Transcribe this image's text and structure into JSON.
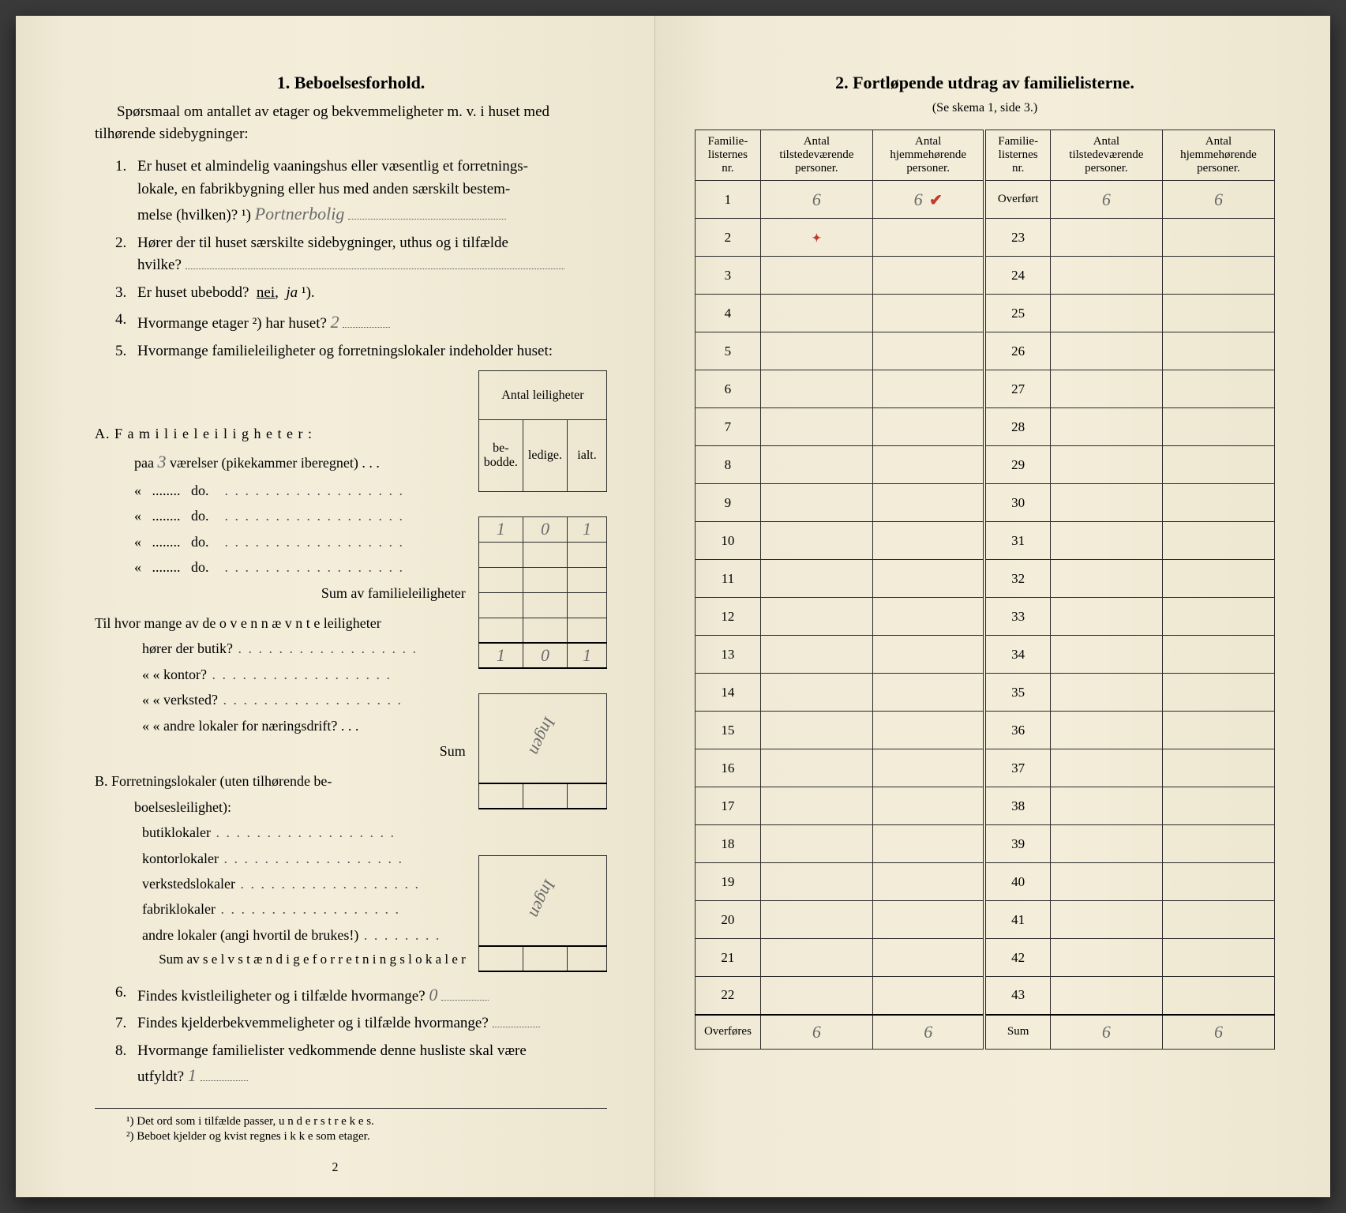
{
  "left": {
    "title": "1.   Beboelsesforhold.",
    "intro": "Spørsmaal om antallet av etager og bekvemmeligheter m. v. i huset med tilhørende sidebygninger:",
    "q1_a": "Er huset et almindelig vaaningshus eller væsentlig et forretnings-",
    "q1_b": "lokale, en fabrikbygning eller hus med anden særskilt bestem-",
    "q1_c": "melse (hvilken)? ¹)",
    "q1_ans": "Portnerbolig",
    "q2_a": "Hører der til huset særskilte sidebygninger, uthus og i tilfælde",
    "q2_b": "hvilke?",
    "q3": "Er huset ubebodd?  nei,  ja ¹).",
    "q4": "Hvormange etager ²) har huset?",
    "q4_ans": "2",
    "q5": "Hvormange familieleiligheter og forretningslokaler indeholder huset:",
    "mini_header_top": "Antal leiligheter",
    "mini_headers": [
      "be-\nbodde.",
      "ledige.",
      "ialt."
    ],
    "A_label": "A. F a m i l i e l e i l i g h e t e r :",
    "A_row1_pre": "paa",
    "A_row1_hand": "3",
    "A_row1_post": "værelser (pikekammer iberegnet) . . .",
    "A_do": "do.",
    "A_sum": "Sum av familieleiligheter",
    "A_vals_row1": [
      "1",
      "0",
      "1"
    ],
    "A_vals_sum": [
      "1",
      "0",
      "1"
    ],
    "mid_q1": "Til hvor mange av de o v e n n æ v n t e leiligheter",
    "mid_rows": [
      "hører der butik?",
      "«       «   kontor?",
      "«       «   verksted?",
      "«       «   andre lokaler for næringsdrift?  . . ."
    ],
    "mid_sum": "Sum",
    "mid_hand": "Ingen",
    "B_label": "B. Forretningslokaler (uten tilhørende be-",
    "B_label2": "boelsesleilighet):",
    "B_rows": [
      "butiklokaler",
      "kontorlokaler",
      "verkstedslokaler",
      "fabriklokaler",
      "andre lokaler (angi hvortil de brukes!)"
    ],
    "B_sum": "Sum av s e l v s t æ n d i g e  f o r r e t n i n g s l o k a l e r",
    "B_hand": "Ingen",
    "q6": "Findes kvistleiligheter og i tilfælde hvormange?",
    "q6_ans": "0",
    "q7": "Findes kjelderbekvemmeligheter og i tilfælde hvormange?",
    "q8_a": "Hvormange familielister vedkommende denne husliste skal være",
    "q8_b": "utfyldt?",
    "q8_ans": "1",
    "fn1": "¹)   Det ord som i tilfælde passer,  u n d e r s t r e k e s.",
    "fn2": "²)   Beboet kjelder og kvist regnes  i k k e  som etager.",
    "page_num": "2"
  },
  "right": {
    "title": "2.   Fortløpende utdrag av familielisterne.",
    "subtitle": "(Se skema 1, side 3.)",
    "headers": {
      "nr": "Familie-\nlisternes\nnr.",
      "tilstede": "Antal\ntilstedeværende\npersoner.",
      "hjemme": "Antal\nhjemmehørende\npersoner."
    },
    "left_rows": [
      1,
      2,
      3,
      4,
      5,
      6,
      7,
      8,
      9,
      10,
      11,
      12,
      13,
      14,
      15,
      16,
      17,
      18,
      19,
      20,
      21,
      22
    ],
    "right_start_label": "Overført",
    "right_rows": [
      23,
      24,
      25,
      26,
      27,
      28,
      29,
      30,
      31,
      32,
      33,
      34,
      35,
      36,
      37,
      38,
      39,
      40,
      41,
      42,
      43
    ],
    "left_sum_label": "Overføres",
    "right_sum_label": "Sum",
    "row1_vals": [
      "6",
      "6"
    ],
    "overfort_vals": [
      "6",
      "6"
    ],
    "overfores_vals": [
      "6",
      "6"
    ],
    "sum_vals": [
      "6",
      "6"
    ],
    "handwritten_color": "#6a6a6a",
    "red_color": "#c43a2a"
  }
}
